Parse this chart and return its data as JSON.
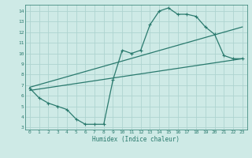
{
  "xlabel": "Humidex (Indice chaleur)",
  "bg_color": "#ceeae6",
  "grid_color": "#aed4d0",
  "line_color": "#2a7a6e",
  "xlim": [
    -0.5,
    23.5
  ],
  "ylim": [
    2.8,
    14.6
  ],
  "yticks": [
    3,
    4,
    5,
    6,
    7,
    8,
    9,
    10,
    11,
    12,
    13,
    14
  ],
  "xticks": [
    0,
    1,
    2,
    3,
    4,
    5,
    6,
    7,
    8,
    9,
    10,
    11,
    12,
    13,
    14,
    15,
    16,
    17,
    18,
    19,
    20,
    21,
    22,
    23
  ],
  "line1_x": [
    0,
    1,
    2,
    3,
    4,
    5,
    6,
    7,
    8,
    9,
    10,
    11,
    12,
    13,
    14,
    15,
    16,
    17,
    18,
    19,
    20,
    21,
    22,
    23
  ],
  "line1_y": [
    6.7,
    5.8,
    5.3,
    5.0,
    4.7,
    3.8,
    3.3,
    3.3,
    3.3,
    7.5,
    10.3,
    10.0,
    10.3,
    12.7,
    14.0,
    14.3,
    13.7,
    13.7,
    13.5,
    12.5,
    11.8,
    9.8,
    9.5,
    9.5
  ],
  "line2_x": [
    0,
    23
  ],
  "line2_y": [
    6.5,
    9.5
  ],
  "line3_x": [
    0,
    23
  ],
  "line3_y": [
    6.8,
    12.5
  ],
  "marker_size": 2.5,
  "linewidth": 0.9
}
